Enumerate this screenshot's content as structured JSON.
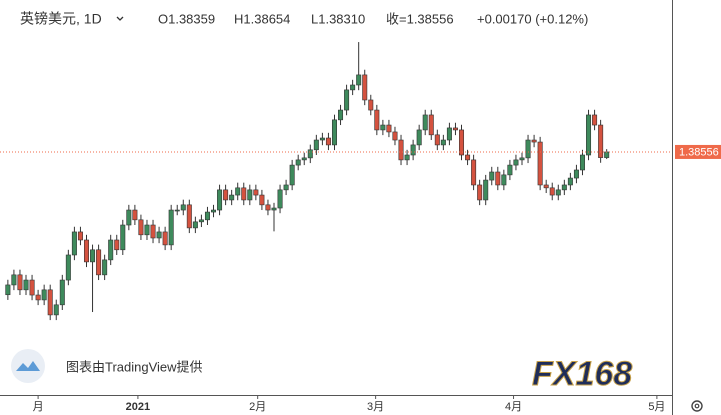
{
  "chart_data": {
    "type": "candlestick",
    "symbol": "英镑美元, 1D",
    "legend": [
      "O1.38359",
      "H1.38654",
      "L1.38310",
      "收=1.38556",
      "+0.00170 (+0.12%)"
    ],
    "credit": "图表由TradingView提供",
    "logo": "FX168",
    "up_color": "#3e8a5c",
    "down_color": "#d4523f",
    "last_price_color": "#ef6a4a",
    "ylim": [
      1.3012,
      1.4383
    ],
    "xlim": [
      -1.3,
      109.8
    ],
    "xticks": [
      {
        "value": 5,
        "label": "月"
      },
      {
        "value": 21.5,
        "label": "2021"
      },
      {
        "value": 41.3,
        "label": "2月"
      },
      {
        "value": 60.8,
        "label": "3月"
      },
      {
        "value": 83.6,
        "label": "4月"
      },
      {
        "value": 107.3,
        "label": "5月"
      }
    ],
    "open": [
      1.336,
      1.3394,
      1.3429,
      1.3377,
      1.3411,
      1.3359,
      1.3342,
      1.3377,
      1.329,
      1.3325,
      1.3411,
      1.3498,
      1.3578,
      1.355,
      1.3474,
      1.3516,
      1.3429,
      1.3481,
      1.355,
      1.3516,
      1.3602,
      1.3654,
      1.362,
      1.3568,
      1.3602,
      1.3557,
      1.3578,
      1.3533,
      1.3654,
      1.3654,
      1.3672,
      1.3592,
      1.3613,
      1.362,
      1.3647,
      1.3654,
      1.3724,
      1.3689,
      1.3706,
      1.3731,
      1.3689,
      1.3724,
      1.3706,
      1.3672,
      1.3654,
      1.3661,
      1.3724,
      1.3741,
      1.381,
      1.3828,
      1.3835,
      1.3863,
      1.3897,
      1.3904,
      1.388,
      1.3967,
      1.4001,
      1.4071,
      1.4088,
      1.4123,
      1.4036,
      1.4001,
      1.3932,
      1.3949,
      1.3925,
      1.3897,
      1.3828,
      1.3845,
      1.388,
      1.3932,
      1.3984,
      1.3915,
      1.388,
      1.3897,
      1.3939,
      1.3932,
      1.3845,
      1.3828,
      1.3741,
      1.3689,
      1.3758,
      1.3786,
      1.3741,
      1.3776,
      1.381,
      1.3828,
      1.3835,
      1.3897,
      1.389,
      1.3741,
      1.3731,
      1.3706,
      1.3724,
      1.3741,
      1.3765,
      1.3793,
      1.3845,
      1.3984,
      1.3949,
      1.38359
    ],
    "high": [
      1.3412,
      1.3447,
      1.3447,
      1.3429,
      1.3429,
      1.3377,
      1.3395,
      1.3395,
      1.3343,
      1.3429,
      1.3516,
      1.3596,
      1.3596,
      1.3568,
      1.3534,
      1.3534,
      1.3499,
      1.3568,
      1.3568,
      1.362,
      1.3672,
      1.3672,
      1.3638,
      1.362,
      1.362,
      1.3596,
      1.3596,
      1.3672,
      1.3672,
      1.369,
      1.369,
      1.3631,
      1.3638,
      1.3665,
      1.3672,
      1.3742,
      1.3742,
      1.3724,
      1.3749,
      1.3749,
      1.3742,
      1.3742,
      1.3724,
      1.369,
      1.3679,
      1.3742,
      1.3759,
      1.3828,
      1.3846,
      1.3853,
      1.3881,
      1.3915,
      1.3922,
      1.3922,
      1.3985,
      1.4019,
      1.4089,
      1.4106,
      1.4237,
      1.4141,
      1.4054,
      1.4019,
      1.3967,
      1.3967,
      1.3943,
      1.3915,
      1.3863,
      1.3898,
      1.395,
      1.4002,
      1.4002,
      1.3933,
      1.3915,
      1.3957,
      1.3957,
      1.395,
      1.3863,
      1.3846,
      1.3759,
      1.3776,
      1.3804,
      1.3804,
      1.3794,
      1.3828,
      1.3846,
      1.3853,
      1.3915,
      1.3915,
      1.3908,
      1.3759,
      1.3749,
      1.3742,
      1.3759,
      1.3783,
      1.3811,
      1.3863,
      1.4002,
      1.4002,
      1.3967,
      1.38654
    ],
    "low": [
      1.3342,
      1.3376,
      1.3359,
      1.3359,
      1.3341,
      1.3324,
      1.3324,
      1.3272,
      1.3272,
      1.3307,
      1.3393,
      1.348,
      1.3532,
      1.3456,
      1.33,
      1.3411,
      1.3411,
      1.3463,
      1.3498,
      1.3498,
      1.3584,
      1.3602,
      1.355,
      1.355,
      1.3539,
      1.3539,
      1.3515,
      1.3515,
      1.3636,
      1.3636,
      1.3574,
      1.3574,
      1.3595,
      1.3602,
      1.3629,
      1.3636,
      1.3671,
      1.3671,
      1.3688,
      1.3671,
      1.3671,
      1.3688,
      1.3654,
      1.3636,
      1.358,
      1.3643,
      1.3706,
      1.3723,
      1.3792,
      1.381,
      1.3817,
      1.3845,
      1.3879,
      1.3862,
      1.3862,
      1.3949,
      1.3983,
      1.4053,
      1.407,
      1.4018,
      1.3983,
      1.3914,
      1.3914,
      1.3907,
      1.3879,
      1.381,
      1.381,
      1.3827,
      1.3862,
      1.3914,
      1.3897,
      1.3862,
      1.3862,
      1.3879,
      1.3914,
      1.3827,
      1.381,
      1.3723,
      1.3671,
      1.3671,
      1.374,
      1.3723,
      1.3723,
      1.3758,
      1.3792,
      1.381,
      1.3817,
      1.3872,
      1.3723,
      1.3713,
      1.3688,
      1.3688,
      1.3706,
      1.3723,
      1.3747,
      1.3775,
      1.3827,
      1.3931,
      1.3818,
      1.3831
    ],
    "close": [
      1.3394,
      1.3429,
      1.3377,
      1.3411,
      1.3359,
      1.3342,
      1.3377,
      1.329,
      1.3325,
      1.3411,
      1.3498,
      1.3578,
      1.355,
      1.3474,
      1.3516,
      1.3429,
      1.3481,
      1.355,
      1.3516,
      1.3602,
      1.3654,
      1.362,
      1.3568,
      1.3602,
      1.3557,
      1.3578,
      1.3533,
      1.3654,
      1.3654,
      1.3672,
      1.3592,
      1.3613,
      1.362,
      1.3647,
      1.3654,
      1.3724,
      1.3689,
      1.3706,
      1.3731,
      1.3689,
      1.3724,
      1.3706,
      1.3672,
      1.3654,
      1.3661,
      1.3724,
      1.3741,
      1.381,
      1.3828,
      1.3835,
      1.3863,
      1.3897,
      1.3904,
      1.388,
      1.3967,
      1.4001,
      1.4071,
      1.4088,
      1.4123,
      1.4036,
      1.4001,
      1.3932,
      1.3949,
      1.3925,
      1.3897,
      1.3828,
      1.3845,
      1.388,
      1.3932,
      1.3984,
      1.3915,
      1.388,
      1.3897,
      1.3939,
      1.3932,
      1.3845,
      1.3828,
      1.3741,
      1.3689,
      1.3758,
      1.3786,
      1.3741,
      1.3776,
      1.381,
      1.3828,
      1.3835,
      1.3897,
      1.389,
      1.3741,
      1.3731,
      1.3706,
      1.3724,
      1.3741,
      1.3765,
      1.3793,
      1.3845,
      1.3984,
      1.3949,
      1.38359,
      1.38556
    ]
  }
}
